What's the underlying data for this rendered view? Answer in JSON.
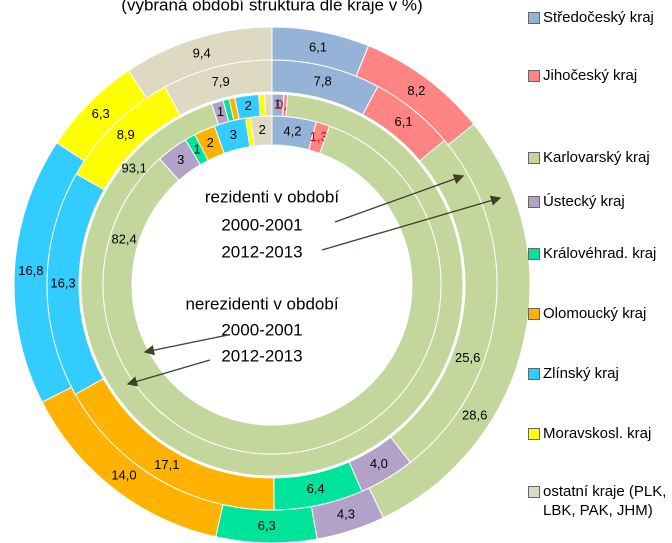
{
  "chart_data": {
    "type": "donut",
    "title": "(vybraná období struktura dle kraje v %)",
    "categories": [
      "Středočeský kraj",
      "Jihočeský kraj",
      "Karlovarský kraj",
      "Ústecký kraj",
      "Královéhrad. kraj",
      "Olomoucký kraj",
      "Zlínský kraj",
      "Moravskosl. kraj",
      "ostatní kraje (PLK, LBK, PAK, JHM)"
    ],
    "colors": [
      "#95b3d7",
      "#ff8585",
      "#c3d69b",
      "#b3a2c7",
      "#00e39b",
      "#ffb300",
      "#33ccff",
      "#ffff00",
      "#ddd9c3"
    ],
    "series": [
      {
        "values": [
          6.1,
          8.2,
          28.6,
          4.3,
          6.3,
          14.0,
          16.8,
          6.3,
          9.4
        ],
        "value_labels": [
          "6,1",
          "8,2",
          "28,6",
          "4,3",
          "6,3",
          "14,0",
          "16,8",
          "6,3",
          "9,4"
        ]
      },
      {
        "values": [
          7.8,
          6.1,
          25.6,
          4.0,
          6.4,
          17.1,
          16.3,
          8.9,
          7.9
        ],
        "value_labels": [
          "7,8",
          "6,1",
          "25,6",
          "4,0",
          "6,4",
          "17,1",
          "16,3",
          "8,9",
          "7,9"
        ]
      },
      {
        "values": [
          1,
          0.3,
          93.1,
          1,
          0.5,
          0.5,
          2,
          0.5,
          0.6
        ],
        "value_labels": [
          "1",
          "0,3",
          "93,1",
          "1",
          null,
          null,
          "2",
          null,
          null
        ]
      },
      {
        "values": [
          4.2,
          1.3,
          82.4,
          3,
          1,
          2,
          3,
          0.5,
          2
        ],
        "value_labels": [
          "4,2",
          "1,3",
          "82,4",
          "3",
          "1",
          "2",
          "3",
          null,
          "2"
        ]
      }
    ],
    "annotations": [
      "rezidenti v období",
      "2000-2001",
      "2012-2013",
      "nerezidenti v období",
      "2000-2001",
      "2012-2013"
    ]
  }
}
